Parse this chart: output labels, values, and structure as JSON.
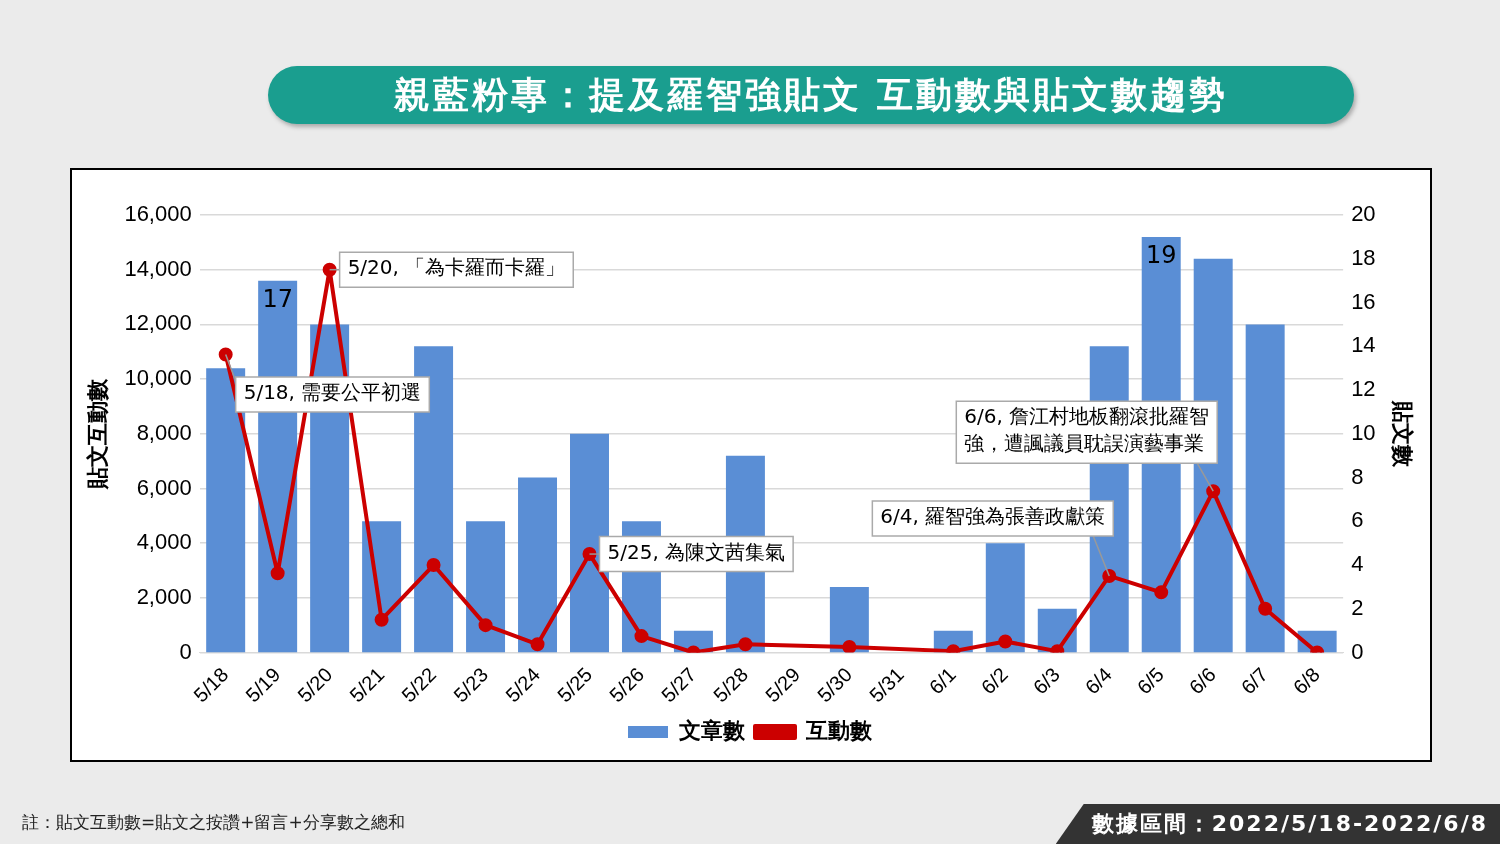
{
  "chart_data": {
    "type": "bar",
    "title": "親藍粉專：提及羅智強貼文 互動數與貼文數趨勢",
    "ylabel": "貼文互動數",
    "y2label": "貼文數",
    "categories": [
      "5/18",
      "5/19",
      "5/20",
      "5/21",
      "5/22",
      "5/23",
      "5/24",
      "5/25",
      "5/26",
      "5/27",
      "5/28",
      "5/29",
      "5/30",
      "5/31",
      "6/1",
      "6/2",
      "6/3",
      "6/4",
      "6/5",
      "6/6",
      "6/7",
      "6/8"
    ],
    "series": [
      {
        "name": "文章數",
        "type": "bar",
        "axis": "y2",
        "color": "#5a8ed5",
        "values": [
          13,
          17,
          15,
          6,
          14,
          6,
          8,
          10,
          6,
          1,
          9,
          0,
          3,
          0,
          1,
          5,
          2,
          14,
          19,
          18,
          15,
          1
        ],
        "value_labels": [
          null,
          "17",
          null,
          null,
          null,
          null,
          null,
          null,
          null,
          null,
          null,
          null,
          null,
          null,
          null,
          null,
          null,
          null,
          "19",
          null,
          null,
          null
        ]
      },
      {
        "name": "互動數",
        "type": "line",
        "color": "#cc0000",
        "marker": "circle",
        "line_style": "solid",
        "values": [
          10900,
          2900,
          14000,
          1200,
          3200,
          1000,
          300,
          3600,
          600,
          0,
          300,
          null,
          200,
          null,
          50,
          400,
          50,
          2800,
          2200,
          5900,
          1600,
          0
        ]
      }
    ],
    "ylim": [
      0,
      16000
    ],
    "yticks": [
      {
        "value": 0,
        "label": "0"
      },
      {
        "value": 2000,
        "label": "2,000"
      },
      {
        "value": 4000,
        "label": "4,000"
      },
      {
        "value": 6000,
        "label": "6,000"
      },
      {
        "value": 8000,
        "label": "8,000"
      },
      {
        "value": 10000,
        "label": "10,000"
      },
      {
        "value": 12000,
        "label": "12,000"
      },
      {
        "value": 14000,
        "label": "14,000"
      },
      {
        "value": 16000,
        "label": "16,000"
      }
    ],
    "y2lim": [
      0,
      20
    ],
    "y2ticks": [
      0,
      2,
      4,
      6,
      8,
      10,
      12,
      14,
      16,
      18,
      20
    ],
    "grid": "y",
    "legend": "bottom",
    "annotations": [
      {
        "text": "5/18, 需要公平初選",
        "x": "5/18",
        "y": 10900
      },
      {
        "text": "5/20, 「為卡羅而卡羅」",
        "x": "5/20",
        "y": 14000
      },
      {
        "text": "5/25, 為陳文茜集氣",
        "x": "5/25",
        "y": 3600
      },
      {
        "text": "6/4, 羅智強為張善政獻策",
        "x": "6/4",
        "y": 2800
      },
      {
        "text": "6/6, 詹江村地板翻滾批羅智強，遭諷議員耽誤演藝事業",
        "x": "6/6",
        "y": 5900
      },
      "註：貼文互動數=貼文之按讚+留言+分享數之總和",
      "數據區間：2022/5/18-2022/6/8"
    ]
  }
}
